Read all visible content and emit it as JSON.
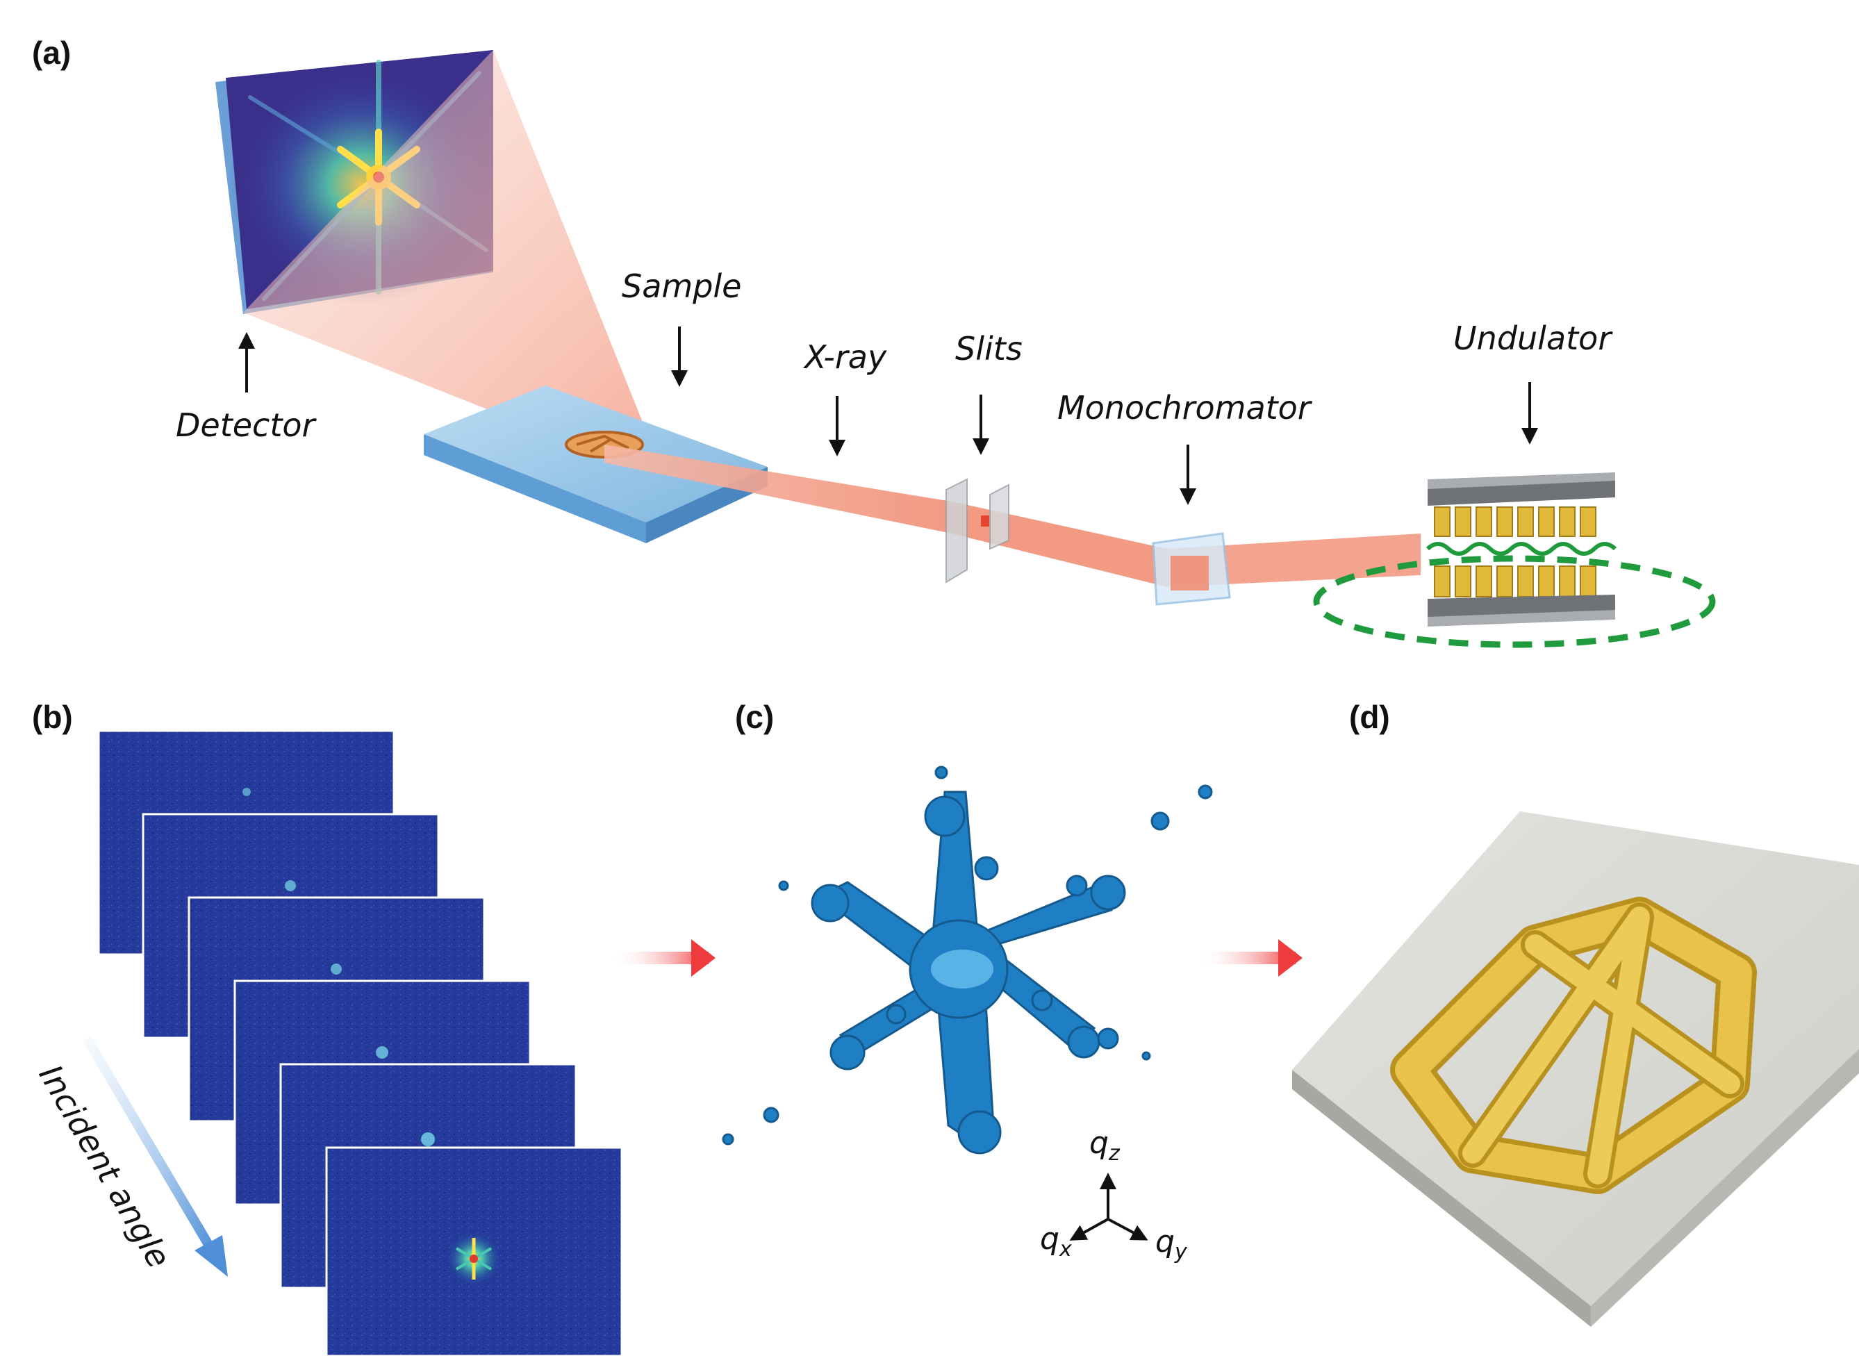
{
  "panels": {
    "a": "(a)",
    "b": "(b)",
    "c": "(c)",
    "d": "(d)"
  },
  "labels": {
    "detector": "Detector",
    "sample": "Sample",
    "xray": "X-ray",
    "slits": "Slits",
    "monochromator": "Monochromator",
    "undulator": "Undulator",
    "incident_angle": "Incident angle"
  },
  "axes": {
    "qz_base": "q",
    "qz_sub": "z",
    "qx_base": "q",
    "qx_sub": "x",
    "qy_base": "q",
    "qy_sub": "y"
  },
  "colors": {
    "beam": "#f4a48e",
    "detector_bg": "#3a2f8a",
    "speckle": "#1f7fc4",
    "particle": "#e8c24a",
    "substrate": "#d6d6d2",
    "magnet": "#e0b93a",
    "orbit": "#1f9a3c",
    "arrow_red": "#ee3b3b"
  }
}
